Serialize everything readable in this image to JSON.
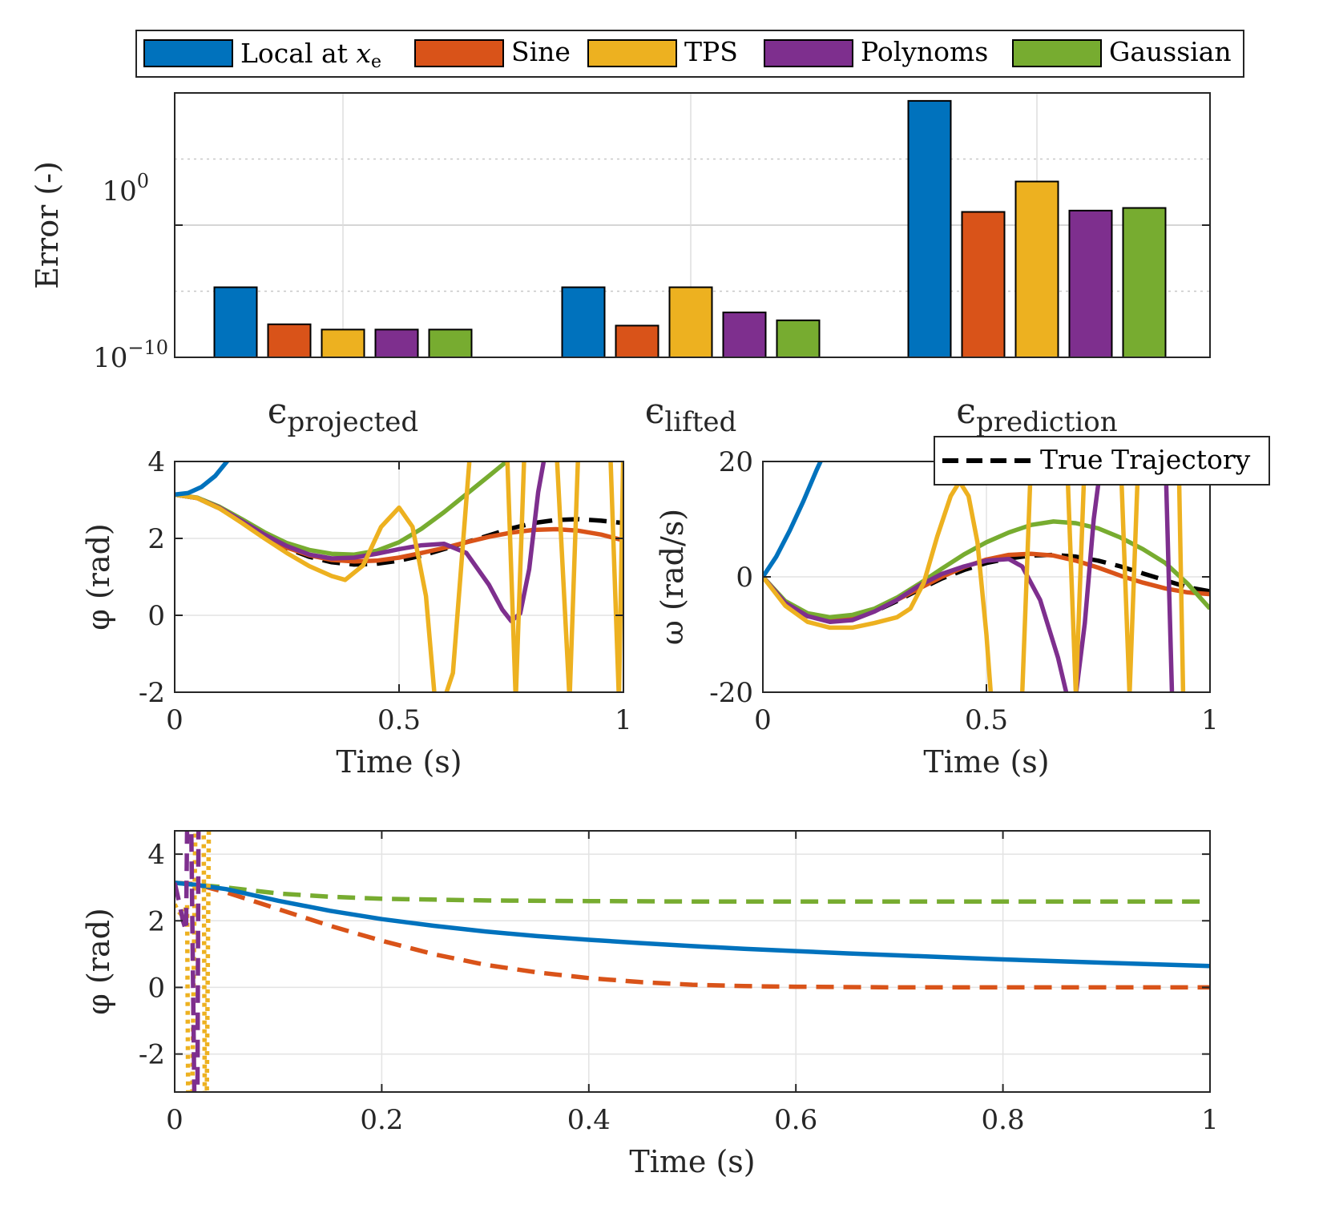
{
  "colors": {
    "local": "#0072BD",
    "sine": "#D95319",
    "tps": "#EDB120",
    "poly": "#7E2F8E",
    "gauss": "#77AC30",
    "true": "#000000"
  },
  "legend": {
    "items": [
      {
        "name": "Local at",
        "math": "x",
        "sub": "e",
        "color": "#0072BD"
      },
      {
        "name": "Sine",
        "color": "#D95319"
      },
      {
        "name": "TPS",
        "color": "#EDB120"
      },
      {
        "name": "Polynoms",
        "color": "#7E2F8E"
      },
      {
        "name": "Gaussian",
        "color": "#77AC30"
      }
    ]
  },
  "chart_data": [
    {
      "type": "bar",
      "id": "errors",
      "ylabel": "Error (-)",
      "yscale": "log",
      "ytick_label_1": {
        "base": "10",
        "exp": "0"
      },
      "ytick_label_2": {
        "base": "10",
        "exp": "−10"
      },
      "ylim_log10": [
        -10,
        10
      ],
      "categories": [
        {
          "symbol": "ϵ",
          "sub": "projected"
        },
        {
          "symbol": "ϵ",
          "sub": "lifted"
        },
        {
          "symbol": "ϵ",
          "sub": "prediction"
        }
      ],
      "series": [
        {
          "name": "Local at x_e",
          "log10_values": [
            -4.7,
            -4.7,
            9.4
          ]
        },
        {
          "name": "Sine",
          "log10_values": [
            -7.5,
            -7.6,
            1.0
          ]
        },
        {
          "name": "TPS",
          "log10_values": [
            -7.9,
            -4.7,
            3.3
          ]
        },
        {
          "name": "Polynoms",
          "log10_values": [
            -7.9,
            -6.6,
            1.1
          ]
        },
        {
          "name": "Gaussian",
          "log10_values": [
            -7.9,
            -7.2,
            1.3
          ]
        }
      ]
    },
    {
      "type": "line",
      "id": "phi",
      "xlabel": "Time (s)",
      "ylabel": "φ (rad)",
      "xlim": [
        0,
        1
      ],
      "ylim": [
        -2,
        4
      ],
      "xticks": [
        "0",
        "0.5",
        "1"
      ],
      "yticks": [
        "-2",
        "0",
        "2",
        "4"
      ],
      "series": [
        {
          "name": "True Trajectory",
          "color": "#000000",
          "dash": true,
          "x": [
            0,
            0.05,
            0.1,
            0.15,
            0.2,
            0.25,
            0.3,
            0.35,
            0.4,
            0.45,
            0.5,
            0.55,
            0.6,
            0.65,
            0.7,
            0.75,
            0.8,
            0.85,
            0.9,
            0.95,
            1.0
          ],
          "y": [
            3.14,
            3.05,
            2.78,
            2.42,
            2.05,
            1.74,
            1.52,
            1.38,
            1.32,
            1.34,
            1.42,
            1.55,
            1.72,
            1.9,
            2.08,
            2.26,
            2.4,
            2.48,
            2.5,
            2.46,
            2.4
          ]
        },
        {
          "name": "Sine",
          "color": "#D95319",
          "x": [
            0,
            0.05,
            0.1,
            0.15,
            0.2,
            0.25,
            0.3,
            0.35,
            0.4,
            0.45,
            0.5,
            0.55,
            0.6,
            0.65,
            0.7,
            0.75,
            0.8,
            0.85,
            0.9,
            0.95,
            1.0
          ],
          "y": [
            3.14,
            3.05,
            2.78,
            2.42,
            2.06,
            1.76,
            1.56,
            1.44,
            1.4,
            1.42,
            1.5,
            1.62,
            1.75,
            1.9,
            2.04,
            2.15,
            2.22,
            2.24,
            2.2,
            2.1,
            1.95
          ]
        },
        {
          "name": "Gaussian",
          "color": "#77AC30",
          "x": [
            0,
            0.05,
            0.1,
            0.15,
            0.2,
            0.25,
            0.3,
            0.35,
            0.4,
            0.45,
            0.5,
            0.55,
            0.6,
            0.65,
            0.7,
            0.75
          ],
          "y": [
            3.14,
            3.06,
            2.82,
            2.5,
            2.16,
            1.88,
            1.7,
            1.6,
            1.58,
            1.68,
            1.9,
            2.25,
            2.68,
            3.15,
            3.62,
            4.1
          ]
        },
        {
          "name": "Polynoms",
          "color": "#7E2F8E",
          "x": [
            0,
            0.05,
            0.1,
            0.15,
            0.2,
            0.25,
            0.3,
            0.35,
            0.4,
            0.45,
            0.5,
            0.55,
            0.6,
            0.65,
            0.7,
            0.73,
            0.75,
            0.77,
            0.79,
            0.81,
            0.83
          ],
          "y": [
            3.14,
            3.05,
            2.8,
            2.45,
            2.1,
            1.8,
            1.58,
            1.48,
            1.5,
            1.6,
            1.72,
            1.82,
            1.86,
            1.62,
            0.8,
            0.15,
            -0.15,
            0.05,
            1.2,
            3.2,
            4.5
          ]
        },
        {
          "name": "TPS",
          "color": "#EDB120",
          "x": [
            0,
            0.05,
            0.1,
            0.15,
            0.2,
            0.25,
            0.3,
            0.35,
            0.38,
            0.42,
            0.46,
            0.5,
            0.53,
            0.56,
            0.58,
            0.6,
            0.62,
            0.64,
            0.66,
            0.74,
            0.76,
            0.78,
            0.85,
            0.88,
            0.9,
            0.97,
            0.99,
            1.0
          ],
          "y": [
            3.14,
            3.05,
            2.78,
            2.4,
            2.0,
            1.62,
            1.28,
            1.02,
            0.92,
            1.3,
            2.3,
            2.8,
            2.3,
            0.5,
            -2.2,
            -2.2,
            -1.5,
            1.5,
            4.5,
            4.5,
            -2.2,
            4.5,
            4.5,
            -2.2,
            4.5,
            4.5,
            -2.2,
            4.5
          ]
        },
        {
          "name": "Local at x_e",
          "color": "#0072BD",
          "x": [
            0,
            0.03,
            0.06,
            0.09,
            0.12
          ],
          "y": [
            3.14,
            3.18,
            3.34,
            3.62,
            4.05
          ]
        }
      ]
    },
    {
      "type": "line",
      "id": "omega",
      "xlabel": "Time (s)",
      "ylabel": "ω (rad/s)",
      "xlim": [
        0,
        1
      ],
      "ylim": [
        -20,
        20
      ],
      "xticks": [
        "0",
        "0.5",
        "1"
      ],
      "yticks": [
        "-20",
        "0",
        "20"
      ],
      "legend": "True Trajectory",
      "series": [
        {
          "name": "True Trajectory",
          "color": "#000000",
          "dash": true,
          "x": [
            0,
            0.05,
            0.1,
            0.15,
            0.2,
            0.25,
            0.3,
            0.35,
            0.4,
            0.45,
            0.5,
            0.55,
            0.6,
            0.65,
            0.7,
            0.75,
            0.8,
            0.85,
            0.9,
            0.95,
            1.0
          ],
          "y": [
            0,
            -4.5,
            -6.8,
            -7.6,
            -7.2,
            -6,
            -4.2,
            -2.2,
            -0.3,
            1.2,
            2.4,
            3.2,
            3.7,
            3.8,
            3.5,
            2.8,
            1.8,
            0.6,
            -0.6,
            -1.8,
            -2.5
          ]
        },
        {
          "name": "Sine",
          "color": "#D95319",
          "x": [
            0,
            0.05,
            0.1,
            0.15,
            0.2,
            0.25,
            0.3,
            0.35,
            0.4,
            0.45,
            0.5,
            0.55,
            0.6,
            0.65,
            0.7,
            0.75,
            0.8,
            0.85,
            0.9,
            0.95,
            1.0
          ],
          "y": [
            0,
            -4.5,
            -6.8,
            -7.5,
            -7,
            -5.8,
            -4,
            -2,
            0,
            1.7,
            3,
            3.8,
            4,
            3.7,
            2.8,
            1.6,
            0.2,
            -1,
            -2,
            -2.7,
            -3
          ]
        },
        {
          "name": "Gaussian",
          "color": "#77AC30",
          "x": [
            0,
            0.05,
            0.1,
            0.15,
            0.2,
            0.25,
            0.3,
            0.35,
            0.4,
            0.45,
            0.5,
            0.55,
            0.6,
            0.65,
            0.7,
            0.75,
            0.8,
            0.85,
            0.9,
            0.95,
            1.0
          ],
          "y": [
            0,
            -4.2,
            -6.3,
            -7,
            -6.6,
            -5.5,
            -3.6,
            -1.2,
            1.4,
            3.9,
            6.0,
            7.7,
            9.0,
            9.6,
            9.3,
            8.4,
            6.8,
            4.8,
            2.4,
            -1.2,
            -5.5
          ]
        },
        {
          "name": "Polynoms",
          "color": "#7E2F8E",
          "x": [
            0,
            0.05,
            0.1,
            0.15,
            0.2,
            0.25,
            0.3,
            0.35,
            0.4,
            0.45,
            0.5,
            0.55,
            0.58,
            0.62,
            0.66,
            0.68,
            0.7,
            0.72,
            0.74,
            0.76,
            0.9,
            0.915,
            0.93
          ],
          "y": [
            0,
            -4.5,
            -6.8,
            -7.8,
            -7.5,
            -6,
            -4,
            -1.5,
            0.5,
            1.8,
            2.8,
            3.1,
            1.8,
            -4,
            -14,
            -20.5,
            -20.5,
            -8,
            10,
            22,
            22,
            -20.5,
            -20.5
          ]
        },
        {
          "name": "TPS",
          "color": "#EDB120",
          "x": [
            0,
            0.05,
            0.1,
            0.15,
            0.2,
            0.25,
            0.3,
            0.33,
            0.36,
            0.39,
            0.42,
            0.44,
            0.46,
            0.48,
            0.5,
            0.51,
            0.52,
            0.58,
            0.59,
            0.6,
            0.68,
            0.7,
            0.72,
            0.8,
            0.82,
            0.84,
            0.93,
            0.94
          ],
          "y": [
            0,
            -5,
            -7.8,
            -8.8,
            -8.8,
            -8,
            -7,
            -5.5,
            -1,
            7,
            14,
            16.5,
            14,
            6,
            -10,
            -20.5,
            -20.5,
            -20.5,
            0,
            21,
            21,
            -20.5,
            21,
            21,
            -20.5,
            21,
            21,
            -20.5
          ]
        },
        {
          "name": "Local at x_e",
          "color": "#0072BD",
          "x": [
            0,
            0.03,
            0.06,
            0.09,
            0.12,
            0.135
          ],
          "y": [
            0,
            3.5,
            8,
            13,
            18.5,
            21
          ]
        }
      ]
    },
    {
      "type": "line",
      "id": "phi_long",
      "xlabel": "Time (s)",
      "ylabel": "φ (rad)",
      "xlim": [
        0,
        1
      ],
      "ylim": [
        -3.14,
        4.7
      ],
      "xticks": [
        "0",
        "0.2",
        "0.4",
        "0.6",
        "0.8",
        "1"
      ],
      "yticks": [
        "-2",
        "0",
        "2",
        "4"
      ],
      "series": [
        {
          "name": "Gaussian",
          "color": "#77AC30",
          "dash": true,
          "x": [
            0,
            0.05,
            0.1,
            0.15,
            0.2,
            0.3,
            0.4,
            0.5,
            0.6,
            0.8,
            1.0
          ],
          "y": [
            3.14,
            3.0,
            2.82,
            2.72,
            2.66,
            2.61,
            2.59,
            2.58,
            2.58,
            2.58,
            2.58
          ]
        },
        {
          "name": "Sine",
          "color": "#D95319",
          "dash": true,
          "x": [
            0,
            0.02,
            0.05,
            0.1,
            0.15,
            0.2,
            0.25,
            0.3,
            0.35,
            0.4,
            0.45,
            0.5,
            0.55,
            0.6,
            0.7,
            0.8,
            0.9,
            1.0
          ],
          "y": [
            3.14,
            3.1,
            2.85,
            2.35,
            1.85,
            1.4,
            1.0,
            0.68,
            0.45,
            0.28,
            0.16,
            0.08,
            0.04,
            0.02,
            0.0,
            0.0,
            0.0,
            0.0
          ]
        },
        {
          "name": "Local at x_e",
          "color": "#0072BD",
          "x": [
            0,
            0.02,
            0.05,
            0.1,
            0.15,
            0.2,
            0.25,
            0.3,
            0.35,
            0.4,
            0.45,
            0.5,
            0.55,
            0.6,
            0.65,
            0.7,
            0.75,
            0.8,
            0.85,
            0.9,
            0.95,
            1.0
          ],
          "y": [
            3.14,
            3.08,
            2.95,
            2.6,
            2.3,
            2.05,
            1.85,
            1.68,
            1.54,
            1.43,
            1.33,
            1.24,
            1.16,
            1.09,
            1.02,
            0.96,
            0.9,
            0.84,
            0.79,
            0.74,
            0.69,
            0.64
          ]
        },
        {
          "name": "TPS",
          "color": "#EDB120",
          "dotted": true,
          "x": [
            0.0,
            0.003,
            0.006,
            0.009,
            0.012,
            0.013,
            0.015,
            0.017,
            0.02,
            0.025,
            0.028,
            0.029,
            0.031,
            0.033
          ],
          "y": [
            2.5,
            2.3,
            2.2,
            2.2,
            2.5,
            -3.2,
            -3.2,
            -3.2,
            4.8,
            4.8,
            4.8,
            -3.2,
            -3.2,
            4.8
          ]
        },
        {
          "name": "Polynoms",
          "color": "#7E2F8E",
          "dash": true,
          "x": [
            0,
            0.004,
            0.008,
            0.011,
            0.012,
            0.013,
            0.016,
            0.019,
            0.021,
            0.022,
            0.023
          ],
          "y": [
            3.14,
            2.6,
            2.0,
            1.7,
            4.8,
            4.8,
            4.8,
            -3.2,
            -3.2,
            -3.2,
            4.8
          ]
        }
      ]
    }
  ]
}
